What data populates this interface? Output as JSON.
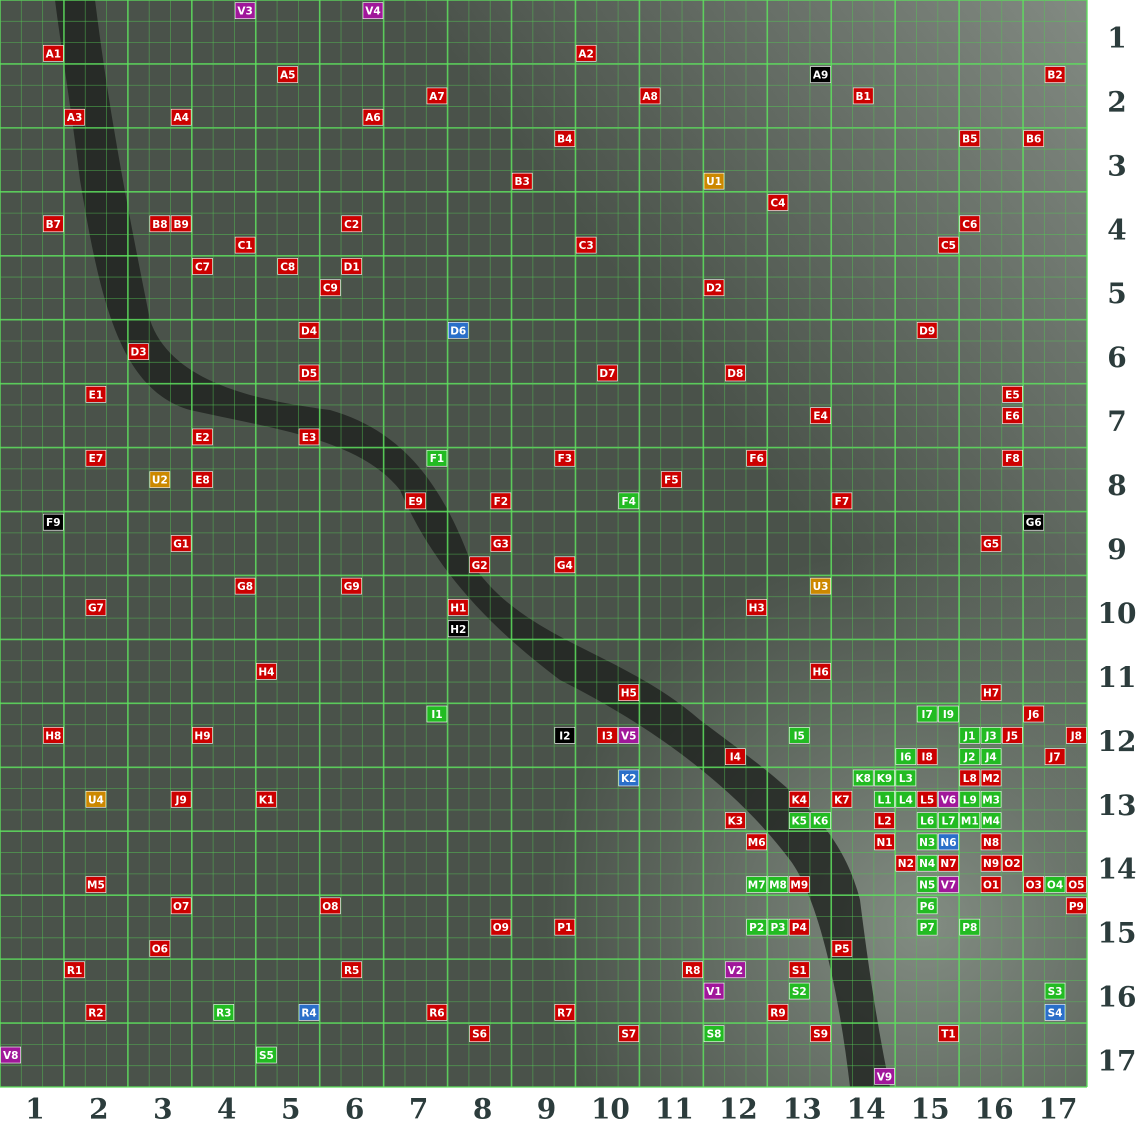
{
  "map": {
    "columns": [
      1,
      2,
      3,
      4,
      5,
      6,
      7,
      8,
      9,
      10,
      11,
      12,
      13,
      14,
      15,
      16,
      17
    ],
    "rows": [
      1,
      2,
      3,
      4,
      5,
      6,
      7,
      8,
      9,
      10,
      11,
      12,
      13,
      14,
      15,
      16,
      17
    ],
    "markers": [
      {
        "label": "V3",
        "color": "#a0179a"
      },
      {
        "label": "V4",
        "color": "#a0179a"
      },
      {
        "label": "A1",
        "color": "#cc0000"
      },
      {
        "label": "A2",
        "color": "#cc0000"
      },
      {
        "label": "A5",
        "color": "#cc0000"
      },
      {
        "label": "A9",
        "color": "#000000"
      },
      {
        "label": "B2",
        "color": "#cc0000"
      },
      {
        "label": "A7",
        "color": "#cc0000"
      },
      {
        "label": "A8",
        "color": "#cc0000"
      },
      {
        "label": "B1",
        "color": "#cc0000"
      },
      {
        "label": "A3",
        "color": "#cc0000"
      },
      {
        "label": "A4",
        "color": "#cc0000"
      },
      {
        "label": "A6",
        "color": "#cc0000"
      },
      {
        "label": "B4",
        "color": "#cc0000"
      },
      {
        "label": "B5",
        "color": "#cc0000"
      },
      {
        "label": "B6",
        "color": "#cc0000"
      },
      {
        "label": "B3",
        "color": "#cc0000"
      },
      {
        "label": "U1",
        "color": "#cc8800"
      },
      {
        "label": "C4",
        "color": "#cc0000"
      },
      {
        "label": "B7",
        "color": "#cc0000"
      },
      {
        "label": "B8",
        "color": "#cc0000"
      },
      {
        "label": "B9",
        "color": "#cc0000"
      },
      {
        "label": "C2",
        "color": "#cc0000"
      },
      {
        "label": "C6",
        "color": "#cc0000"
      },
      {
        "label": "C1",
        "color": "#cc0000"
      },
      {
        "label": "C3",
        "color": "#cc0000"
      },
      {
        "label": "C5",
        "color": "#cc0000"
      },
      {
        "label": "C7",
        "color": "#cc0000"
      },
      {
        "label": "C8",
        "color": "#cc0000"
      },
      {
        "label": "D1",
        "color": "#cc0000"
      },
      {
        "label": "C9",
        "color": "#cc0000"
      },
      {
        "label": "D2",
        "color": "#cc0000"
      },
      {
        "label": "D4",
        "color": "#cc0000"
      },
      {
        "label": "D6",
        "color": "#2a6fc9"
      },
      {
        "label": "D9",
        "color": "#cc0000"
      },
      {
        "label": "D3",
        "color": "#cc0000"
      },
      {
        "label": "D5",
        "color": "#cc0000"
      },
      {
        "label": "D7",
        "color": "#cc0000"
      },
      {
        "label": "D8",
        "color": "#cc0000"
      },
      {
        "label": "E1",
        "color": "#cc0000"
      },
      {
        "label": "E5",
        "color": "#cc0000"
      },
      {
        "label": "E4",
        "color": "#cc0000"
      },
      {
        "label": "E6",
        "color": "#cc0000"
      },
      {
        "label": "E2",
        "color": "#cc0000"
      },
      {
        "label": "E3",
        "color": "#cc0000"
      },
      {
        "label": "E7",
        "color": "#cc0000"
      },
      {
        "label": "F1",
        "color": "#22bb22"
      },
      {
        "label": "F3",
        "color": "#cc0000"
      },
      {
        "label": "F6",
        "color": "#cc0000"
      },
      {
        "label": "F8",
        "color": "#cc0000"
      },
      {
        "label": "U2",
        "color": "#cc8800"
      },
      {
        "label": "E8",
        "color": "#cc0000"
      },
      {
        "label": "F5",
        "color": "#cc0000"
      },
      {
        "label": "E9",
        "color": "#cc0000"
      },
      {
        "label": "F2",
        "color": "#cc0000"
      },
      {
        "label": "F4",
        "color": "#22bb22"
      },
      {
        "label": "F7",
        "color": "#cc0000"
      },
      {
        "label": "F9",
        "color": "#000000"
      },
      {
        "label": "G6",
        "color": "#000000"
      },
      {
        "label": "G1",
        "color": "#cc0000"
      },
      {
        "label": "G3",
        "color": "#cc0000"
      },
      {
        "label": "G5",
        "color": "#cc0000"
      },
      {
        "label": "G2",
        "color": "#cc0000"
      },
      {
        "label": "G4",
        "color": "#cc0000"
      },
      {
        "label": "G8",
        "color": "#cc0000"
      },
      {
        "label": "G9",
        "color": "#cc0000"
      },
      {
        "label": "U3",
        "color": "#cc8800"
      },
      {
        "label": "G7",
        "color": "#cc0000"
      },
      {
        "label": "H1",
        "color": "#cc0000"
      },
      {
        "label": "H3",
        "color": "#cc0000"
      },
      {
        "label": "H2",
        "color": "#000000"
      },
      {
        "label": "H4",
        "color": "#cc0000"
      },
      {
        "label": "H6",
        "color": "#cc0000"
      },
      {
        "label": "H5",
        "color": "#cc0000"
      },
      {
        "label": "H7",
        "color": "#cc0000"
      },
      {
        "label": "I1",
        "color": "#22bb22"
      },
      {
        "label": "I7",
        "color": "#22bb22"
      },
      {
        "label": "I9",
        "color": "#22bb22"
      },
      {
        "label": "J6",
        "color": "#cc0000"
      },
      {
        "label": "H8",
        "color": "#cc0000"
      },
      {
        "label": "H9",
        "color": "#cc0000"
      },
      {
        "label": "I2",
        "color": "#000000"
      },
      {
        "label": "I3",
        "color": "#cc0000"
      },
      {
        "label": "V5",
        "color": "#a0179a"
      },
      {
        "label": "I5",
        "color": "#22bb22"
      },
      {
        "label": "J1",
        "color": "#22bb22"
      },
      {
        "label": "J3",
        "color": "#22bb22"
      },
      {
        "label": "J5",
        "color": "#cc0000"
      },
      {
        "label": "J8",
        "color": "#cc0000"
      },
      {
        "label": "I4",
        "color": "#cc0000"
      },
      {
        "label": "I6",
        "color": "#22bb22"
      },
      {
        "label": "I8",
        "color": "#cc0000"
      },
      {
        "label": "J2",
        "color": "#22bb22"
      },
      {
        "label": "J4",
        "color": "#22bb22"
      },
      {
        "label": "J7",
        "color": "#cc0000"
      },
      {
        "label": "K2",
        "color": "#2a6fc9"
      },
      {
        "label": "K8",
        "color": "#22bb22"
      },
      {
        "label": "K9",
        "color": "#22bb22"
      },
      {
        "label": "L3",
        "color": "#22bb22"
      },
      {
        "label": "L8",
        "color": "#cc0000"
      },
      {
        "label": "M2",
        "color": "#cc0000"
      },
      {
        "label": "U4",
        "color": "#cc8800"
      },
      {
        "label": "J9",
        "color": "#cc0000"
      },
      {
        "label": "K1",
        "color": "#cc0000"
      },
      {
        "label": "K4",
        "color": "#cc0000"
      },
      {
        "label": "K7",
        "color": "#cc0000"
      },
      {
        "label": "L1",
        "color": "#22bb22"
      },
      {
        "label": "L4",
        "color": "#22bb22"
      },
      {
        "label": "L5",
        "color": "#cc0000"
      },
      {
        "label": "V6",
        "color": "#a0179a"
      },
      {
        "label": "L9",
        "color": "#22bb22"
      },
      {
        "label": "M3",
        "color": "#22bb22"
      },
      {
        "label": "K3",
        "color": "#cc0000"
      },
      {
        "label": "K5",
        "color": "#22bb22"
      },
      {
        "label": "K6",
        "color": "#22bb22"
      },
      {
        "label": "L2",
        "color": "#cc0000"
      },
      {
        "label": "L6",
        "color": "#22bb22"
      },
      {
        "label": "L7",
        "color": "#22bb22"
      },
      {
        "label": "M1",
        "color": "#22bb22"
      },
      {
        "label": "M4",
        "color": "#22bb22"
      },
      {
        "label": "M6",
        "color": "#cc0000"
      },
      {
        "label": "N1",
        "color": "#cc0000"
      },
      {
        "label": "N3",
        "color": "#22bb22"
      },
      {
        "label": "N6",
        "color": "#2a6fc9"
      },
      {
        "label": "N8",
        "color": "#cc0000"
      },
      {
        "label": "N2",
        "color": "#cc0000"
      },
      {
        "label": "N4",
        "color": "#22bb22"
      },
      {
        "label": "N7",
        "color": "#cc0000"
      },
      {
        "label": "N9",
        "color": "#cc0000"
      },
      {
        "label": "O2",
        "color": "#cc0000"
      },
      {
        "label": "M5",
        "color": "#cc0000"
      },
      {
        "label": "M7",
        "color": "#22bb22"
      },
      {
        "label": "M8",
        "color": "#22bb22"
      },
      {
        "label": "M9",
        "color": "#cc0000"
      },
      {
        "label": "N5",
        "color": "#22bb22"
      },
      {
        "label": "V7",
        "color": "#a0179a"
      },
      {
        "label": "O1",
        "color": "#cc0000"
      },
      {
        "label": "O3",
        "color": "#cc0000"
      },
      {
        "label": "O4",
        "color": "#22bb22"
      },
      {
        "label": "O5",
        "color": "#cc0000"
      },
      {
        "label": "O7",
        "color": "#cc0000"
      },
      {
        "label": "O8",
        "color": "#cc0000"
      },
      {
        "label": "P6",
        "color": "#22bb22"
      },
      {
        "label": "P9",
        "color": "#cc0000"
      },
      {
        "label": "O9",
        "color": "#cc0000"
      },
      {
        "label": "P1",
        "color": "#cc0000"
      },
      {
        "label": "P2",
        "color": "#22bb22"
      },
      {
        "label": "P3",
        "color": "#22bb22"
      },
      {
        "label": "P4",
        "color": "#cc0000"
      },
      {
        "label": "P7",
        "color": "#22bb22"
      },
      {
        "label": "P8",
        "color": "#22bb22"
      },
      {
        "label": "O6",
        "color": "#cc0000"
      },
      {
        "label": "P5",
        "color": "#cc0000"
      },
      {
        "label": "R1",
        "color": "#cc0000"
      },
      {
        "label": "R5",
        "color": "#cc0000"
      },
      {
        "label": "R8",
        "color": "#cc0000"
      },
      {
        "label": "V2",
        "color": "#a0179a"
      },
      {
        "label": "S1",
        "color": "#cc0000"
      },
      {
        "label": "V1",
        "color": "#a0179a"
      },
      {
        "label": "S2",
        "color": "#22bb22"
      },
      {
        "label": "S3",
        "color": "#22bb22"
      },
      {
        "label": "R2",
        "color": "#cc0000"
      },
      {
        "label": "R3",
        "color": "#22bb22"
      },
      {
        "label": "R4",
        "color": "#2a6fc9"
      },
      {
        "label": "R6",
        "color": "#cc0000"
      },
      {
        "label": "R7",
        "color": "#cc0000"
      },
      {
        "label": "R9",
        "color": "#cc0000"
      },
      {
        "label": "S4",
        "color": "#2a6fc9"
      },
      {
        "label": "S6",
        "color": "#cc0000"
      },
      {
        "label": "S7",
        "color": "#cc0000"
      },
      {
        "label": "S8",
        "color": "#22bb22"
      },
      {
        "label": "S9",
        "color": "#cc0000"
      },
      {
        "label": "T1",
        "color": "#cc0000"
      },
      {
        "label": "V8",
        "color": "#a0179a"
      },
      {
        "label": "S5",
        "color": "#22bb22"
      },
      {
        "label": "V9",
        "color": "#a0179a"
      }
    ]
  }
}
